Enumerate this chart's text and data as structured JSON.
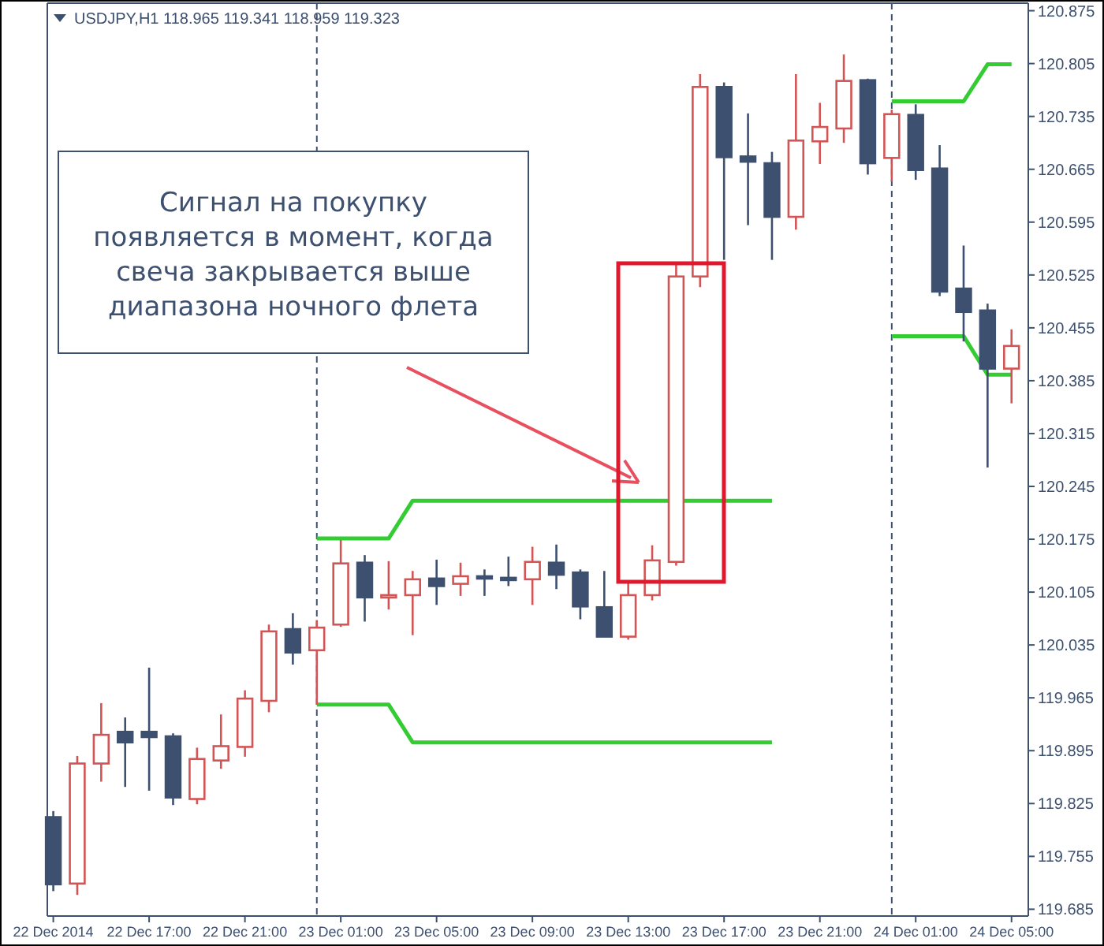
{
  "chart_data": {
    "type": "candlestick",
    "title": "USDJPY,H1  118.965 119.341 118.959 119.323",
    "x": [
      "2014-12-22T13:00",
      "2014-12-22T14:00",
      "2014-12-22T15:00",
      "2014-12-22T16:00",
      "2014-12-22T17:00",
      "2014-12-22T18:00",
      "2014-12-22T19:00",
      "2014-12-22T20:00",
      "2014-12-22T21:00",
      "2014-12-22T22:00",
      "2014-12-22T23:00",
      "2014-12-23T00:00",
      "2014-12-23T01:00",
      "2014-12-23T02:00",
      "2014-12-23T03:00",
      "2014-12-23T04:00",
      "2014-12-23T05:00",
      "2014-12-23T06:00",
      "2014-12-23T07:00",
      "2014-12-23T08:00",
      "2014-12-23T09:00",
      "2014-12-23T10:00",
      "2014-12-23T11:00",
      "2014-12-23T12:00",
      "2014-12-23T13:00",
      "2014-12-23T14:00",
      "2014-12-23T15:00",
      "2014-12-23T16:00",
      "2014-12-23T17:00",
      "2014-12-23T18:00",
      "2014-12-23T19:00",
      "2014-12-23T20:00",
      "2014-12-23T21:00",
      "2014-12-23T22:00",
      "2014-12-23T23:00",
      "2014-12-24T00:00",
      "2014-12-24T01:00",
      "2014-12-24T02:00",
      "2014-12-24T03:00",
      "2014-12-24T04:00",
      "2014-12-24T05:00"
    ],
    "ohlc": [
      [
        119.807,
        119.815,
        119.709,
        119.718
      ],
      [
        119.719,
        119.888,
        119.704,
        119.878
      ],
      [
        119.878,
        119.958,
        119.854,
        119.916
      ],
      [
        119.92,
        119.939,
        119.847,
        119.906
      ],
      [
        119.92,
        120.005,
        119.842,
        119.913
      ],
      [
        119.914,
        119.918,
        119.823,
        119.833
      ],
      [
        119.831,
        119.899,
        119.824,
        119.884
      ],
      [
        119.882,
        119.943,
        119.871,
        119.901
      ],
      [
        119.9,
        119.975,
        119.887,
        119.964
      ],
      [
        119.961,
        120.062,
        119.946,
        120.053
      ],
      [
        120.056,
        120.077,
        120.009,
        120.025
      ],
      [
        120.028,
        120.068,
        119.956,
        120.058
      ],
      [
        120.062,
        120.174,
        120.059,
        120.143
      ],
      [
        120.144,
        120.154,
        120.066,
        120.098
      ],
      [
        120.098,
        120.146,
        120.082,
        120.101
      ],
      [
        120.101,
        120.133,
        120.048,
        120.122
      ],
      [
        120.123,
        120.148,
        120.088,
        120.113
      ],
      [
        120.116,
        120.144,
        120.1,
        120.126
      ],
      [
        120.126,
        120.135,
        120.1,
        120.124
      ],
      [
        120.124,
        120.152,
        120.113,
        120.121
      ],
      [
        120.122,
        120.165,
        120.088,
        120.145
      ],
      [
        120.144,
        120.168,
        120.109,
        120.128
      ],
      [
        120.131,
        120.135,
        120.069,
        120.086
      ],
      [
        120.085,
        120.133,
        120.046,
        120.046
      ],
      [
        120.046,
        120.118,
        120.042,
        120.101
      ],
      [
        120.101,
        120.167,
        120.094,
        120.147
      ],
      [
        120.145,
        120.542,
        120.14,
        120.523
      ],
      [
        120.523,
        120.791,
        120.509,
        120.774
      ],
      [
        120.774,
        120.78,
        120.545,
        120.681
      ],
      [
        120.682,
        120.739,
        120.591,
        120.675
      ],
      [
        120.673,
        120.688,
        120.545,
        120.602
      ],
      [
        120.602,
        120.791,
        120.585,
        120.703
      ],
      [
        120.702,
        120.753,
        120.672,
        120.721
      ],
      [
        120.719,
        120.817,
        120.7,
        120.782
      ],
      [
        120.783,
        120.785,
        120.658,
        120.673
      ],
      [
        120.68,
        120.744,
        120.649,
        120.738
      ],
      [
        120.737,
        120.751,
        120.651,
        120.664
      ],
      [
        120.666,
        120.697,
        120.497,
        120.503
      ],
      [
        120.507,
        120.564,
        120.437,
        120.476
      ],
      [
        120.478,
        120.487,
        120.27,
        120.401
      ],
      [
        120.401,
        120.453,
        120.355,
        120.431
      ]
    ],
    "colors": [
      "#3d5070",
      "#d35454",
      "#d35454",
      "#3d5070",
      "#3d5070",
      "#3d5070",
      "#d35454",
      "#d35454",
      "#d35454",
      "#d35454",
      "#3d5070",
      "#d35454",
      "#d35454",
      "#3d5070",
      "#d35454",
      "#d35454",
      "#3d5070",
      "#d35454",
      "#3d5070",
      "#3d5070",
      "#d35454",
      "#3d5070",
      "#3d5070",
      "#3d5070",
      "#d35454",
      "#d35454",
      "#d35454",
      "#d35454",
      "#3d5070",
      "#3d5070",
      "#3d5070",
      "#d35454",
      "#d35454",
      "#d35454",
      "#3d5070",
      "#d35454",
      "#3d5070",
      "#3d5070",
      "#3d5070",
      "#3d5070",
      "#d35454"
    ],
    "series": [
      {
        "type": "line",
        "color": "#33cc33",
        "x": [
          "2014-12-23T00:00",
          "2014-12-23T03:00",
          "2014-12-23T04:00",
          "2014-12-23T19:00"
        ],
        "values": [
          120.176,
          120.176,
          120.226,
          120.226
        ]
      },
      {
        "type": "line",
        "color": "#33cc33",
        "x": [
          "2014-12-23T00:00",
          "2014-12-23T03:00",
          "2014-12-23T04:00",
          "2014-12-23T19:00"
        ],
        "values": [
          119.956,
          119.956,
          119.906,
          119.906
        ]
      },
      {
        "type": "line",
        "color": "#33cc33",
        "x": [
          "2014-12-24T00:00",
          "2014-12-24T03:00",
          "2014-12-24T04:00",
          "2014-12-24T05:00"
        ],
        "values": [
          120.755,
          120.755,
          120.804,
          120.804
        ]
      },
      {
        "type": "line",
        "color": "#33cc33",
        "x": [
          "2014-12-24T00:00",
          "2014-12-24T03:00",
          "2014-12-24T04:00",
          "2014-12-24T05:00"
        ],
        "values": [
          120.444,
          120.444,
          120.393,
          120.393
        ]
      }
    ],
    "ref_lines": [
      {
        "axis": "x",
        "value": "2014-12-23T00:00",
        "color": "#3d5070",
        "line_style": "dashed"
      },
      {
        "axis": "x",
        "value": "2014-12-24T00:00",
        "color": "#3d5070",
        "line_style": "dashed"
      }
    ],
    "annotations": [
      "Сигнал на покупку\nпоявляется в момент, когда\nсвеча закрывается выше\nдиапазона ночного флета"
    ],
    "xlim": [
      "2014-12-22T12:45",
      "2014-12-24T05:42"
    ],
    "xticks": [
      {
        "value": "2014-12-22T13:00",
        "label": "22 Dec 2014"
      },
      {
        "value": "2014-12-22T17:00",
        "label": "22 Dec 17:00"
      },
      {
        "value": "2014-12-22T21:00",
        "label": "22 Dec 21:00"
      },
      {
        "value": "2014-12-23T01:00",
        "label": "23 Dec 01:00"
      },
      {
        "value": "2014-12-23T05:00",
        "label": "23 Dec 05:00"
      },
      {
        "value": "2014-12-23T09:00",
        "label": "23 Dec 09:00"
      },
      {
        "value": "2014-12-23T13:00",
        "label": "23 Dec 13:00"
      },
      {
        "value": "2014-12-23T17:00",
        "label": "23 Dec 17:00"
      },
      {
        "value": "2014-12-23T21:00",
        "label": "23 Dec 21:00"
      },
      {
        "value": "2014-12-24T01:00",
        "label": "24 Dec 01:00"
      },
      {
        "value": "2014-12-24T05:00",
        "label": "24 Dec 05:00"
      }
    ],
    "ylim": [
      119.676,
      120.885
    ],
    "yticks": [
      120.875,
      120.805,
      120.735,
      120.665,
      120.595,
      120.525,
      120.455,
      120.385,
      120.315,
      120.245,
      120.175,
      120.105,
      120.035,
      119.965,
      119.895,
      119.825,
      119.755,
      119.685
    ]
  }
}
